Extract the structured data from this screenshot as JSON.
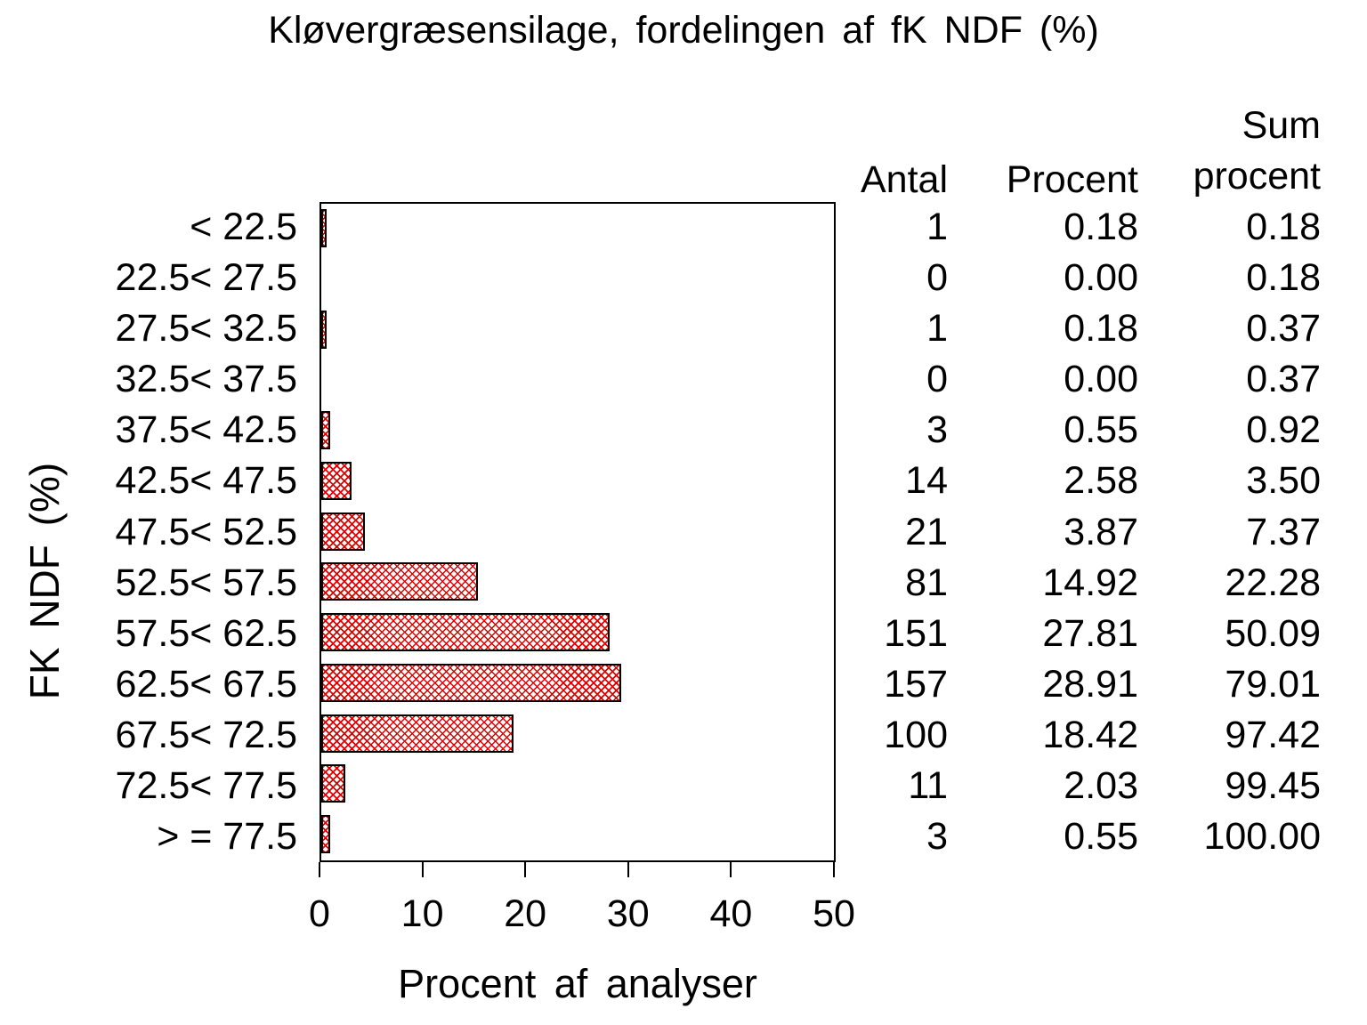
{
  "title": "Kløvergræsensilage, fordelingen af fK NDF (%)",
  "colors": {
    "background": "#ffffff",
    "text": "#000000",
    "axis": "#000000",
    "bar_border": "#000000",
    "bar_hatch": "#e20000"
  },
  "chart_data": {
    "type": "bar",
    "orientation": "horizontal",
    "title": "Kløvergræsensilage, fordelingen af fK NDF (%)",
    "xlabel": "Procent af analyser",
    "ylabel": "FK NDF (%)",
    "categories": [
      "< 22.5",
      "22.5< 27.5",
      "27.5< 32.5",
      "32.5< 37.5",
      "37.5< 42.5",
      "42.5< 47.5",
      "47.5< 52.5",
      "52.5< 57.5",
      "57.5< 62.5",
      "62.5< 67.5",
      "67.5< 72.5",
      "72.5< 77.5",
      "> = 77.5"
    ],
    "values": [
      0.18,
      0.0,
      0.18,
      0.0,
      0.55,
      2.58,
      3.87,
      14.92,
      27.81,
      28.91,
      18.42,
      2.03,
      0.55
    ],
    "counts": [
      1,
      0,
      1,
      0,
      3,
      14,
      21,
      81,
      151,
      157,
      100,
      11,
      3
    ],
    "cum_percent": [
      0.18,
      0.18,
      0.37,
      0.37,
      0.92,
      3.5,
      7.37,
      22.28,
      50.09,
      79.01,
      97.42,
      99.45,
      100.0
    ],
    "xlim": [
      0,
      50
    ],
    "xticks": [
      0,
      10,
      20,
      30,
      40,
      50
    ],
    "grid": false,
    "legend": null,
    "bar_fill": "red crosshatch pattern on white"
  },
  "table": {
    "headers": {
      "antal": "Antal",
      "procent": "Procent",
      "sum_line1": "Sum",
      "sum_line2": "procent"
    },
    "rows": [
      {
        "antal": "1",
        "procent": "0.18",
        "sum": "0.18"
      },
      {
        "antal": "0",
        "procent": "0.00",
        "sum": "0.18"
      },
      {
        "antal": "1",
        "procent": "0.18",
        "sum": "0.37"
      },
      {
        "antal": "0",
        "procent": "0.00",
        "sum": "0.37"
      },
      {
        "antal": "3",
        "procent": "0.55",
        "sum": "0.92"
      },
      {
        "antal": "14",
        "procent": "2.58",
        "sum": "3.50"
      },
      {
        "antal": "21",
        "procent": "3.87",
        "sum": "7.37"
      },
      {
        "antal": "81",
        "procent": "14.92",
        "sum": "22.28"
      },
      {
        "antal": "151",
        "procent": "27.81",
        "sum": "50.09"
      },
      {
        "antal": "157",
        "procent": "28.91",
        "sum": "79.01"
      },
      {
        "antal": "100",
        "procent": "18.42",
        "sum": "97.42"
      },
      {
        "antal": "11",
        "procent": "2.03",
        "sum": "99.45"
      },
      {
        "antal": "3",
        "procent": "0.55",
        "sum": "100.00"
      }
    ]
  }
}
